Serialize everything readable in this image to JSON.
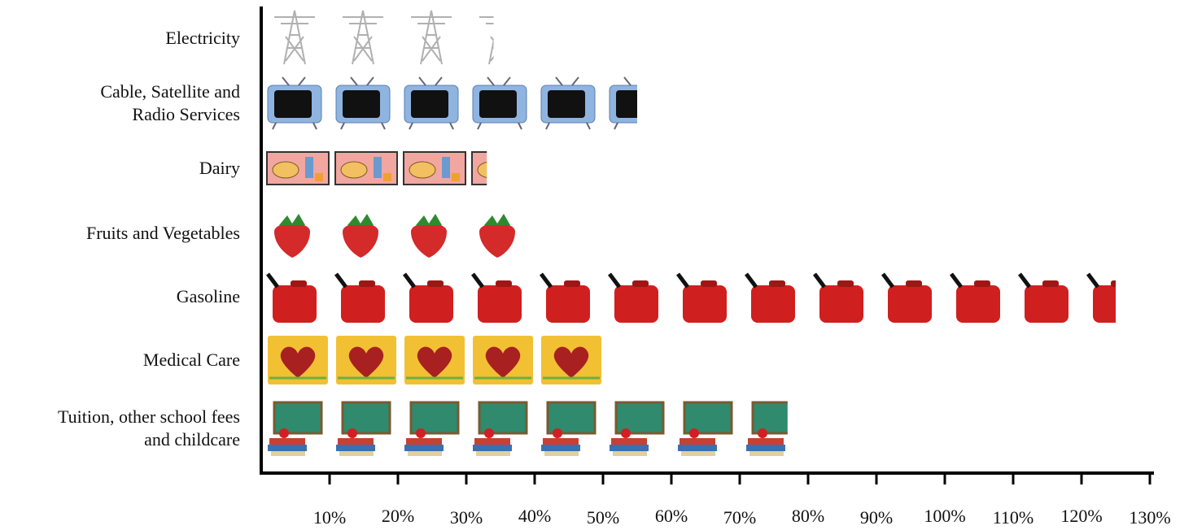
{
  "chart_data": {
    "type": "pictograph",
    "categories": [
      "Electricity",
      "Cable, Satellite and\nRadio Services",
      "Dairy",
      "Fruits and Vegetables",
      "Gasoline",
      "Medical Care",
      "Tuition, other school fees\nand childcare"
    ],
    "values": [
      34,
      55,
      33,
      38,
      125,
      50,
      77
    ],
    "colors": [
      "#b0b0b0",
      "#8fb4e0",
      "#f2a6a0",
      "#d42a2a",
      "#d01f1f",
      "#f2c033",
      "#2f8a6e"
    ],
    "xlim": [
      0,
      130
    ],
    "xticks": [
      {
        "value": 10,
        "label": "10%"
      },
      {
        "value": 20,
        "label": "20%"
      },
      {
        "value": 30,
        "label": "30%"
      },
      {
        "value": 40,
        "label": "40%"
      },
      {
        "value": 50,
        "label": "50%"
      },
      {
        "value": 60,
        "label": "60%"
      },
      {
        "value": 70,
        "label": "70%"
      },
      {
        "value": 80,
        "label": "80%"
      },
      {
        "value": 90,
        "label": "90%"
      },
      {
        "value": 100,
        "label": "100%"
      },
      {
        "value": 110,
        "label": "110%"
      },
      {
        "value": 120,
        "label": "120%"
      },
      {
        "value": 130,
        "label": "130%"
      }
    ]
  }
}
